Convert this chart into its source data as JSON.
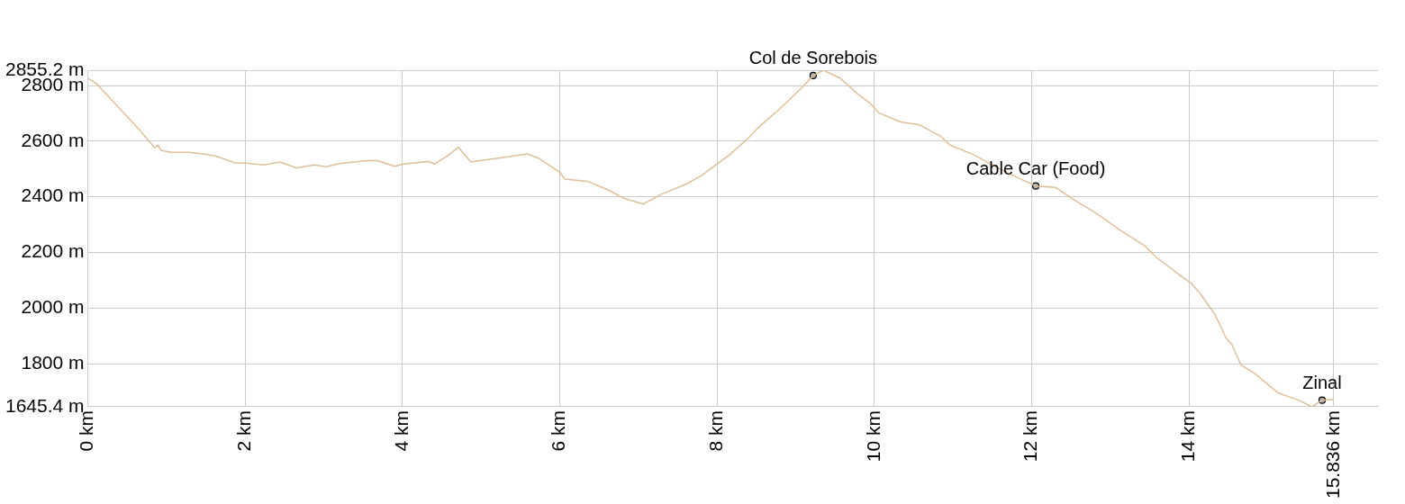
{
  "chart_data": {
    "type": "line",
    "series": [
      {
        "color": "#dfbf99",
        "x": [
          0,
          0.11,
          0.34,
          0.66,
          0.85,
          0.89,
          0.93,
          1.05,
          1.28,
          1.47,
          1.63,
          1.87,
          2.01,
          2.24,
          2.44,
          2.65,
          2.88,
          3.02,
          3.23,
          3.55,
          3.68,
          3.9,
          4.01,
          4.33,
          4.41,
          4.56,
          4.71,
          4.87,
          5.07,
          5.34,
          5.59,
          5.73,
          5.85,
          6,
          6.06,
          6.35,
          6.62,
          6.82,
          7.06,
          7.29,
          7.6,
          7.8,
          8,
          8.15,
          8.38,
          8.54,
          8.78,
          9.08,
          9.22,
          9.35,
          9.56,
          9.79,
          9.94,
          10.06,
          10.33,
          10.57,
          10.84,
          10.96,
          11.24,
          11.69,
          12.05,
          12.3,
          12.56,
          12.79,
          13.13,
          13.43,
          13.58,
          13.88,
          14.03,
          14.14,
          14.33,
          14.47,
          14.54,
          14.66,
          14.82,
          15.13,
          15.39,
          15.56,
          15.69,
          15.836
        ],
        "values": [
          2826,
          2807,
          2737,
          2639,
          2576,
          2586,
          2567,
          2560,
          2560,
          2554,
          2546,
          2522,
          2521,
          2515,
          2525,
          2504,
          2515,
          2508,
          2521,
          2530,
          2530,
          2510,
          2518,
          2527,
          2518,
          2545,
          2578,
          2525,
          2533,
          2544,
          2554,
          2539,
          2516,
          2488,
          2464,
          2456,
          2424,
          2394,
          2374,
          2409,
          2445,
          2476,
          2518,
          2549,
          2607,
          2654,
          2712,
          2794,
          2836,
          2855,
          2827,
          2769,
          2737,
          2701,
          2669,
          2659,
          2618,
          2586,
          2554,
          2486,
          2439,
          2434,
          2385,
          2346,
          2279,
          2225,
          2183,
          2119,
          2088,
          2052,
          1976,
          1892,
          1870,
          1795,
          1768,
          1695,
          1669,
          1645.4,
          1669,
          1671
        ]
      },
      {
        "type": "scatter",
        "color": "#aaaaaa",
        "marker": "circle",
        "x": [
          9.22,
          12.05,
          15.69
        ],
        "values": [
          2836,
          2439,
          1669
        ]
      }
    ],
    "xlim": [
      0,
      16.4
    ],
    "xticks": [
      {
        "value": 0,
        "label": "0 km"
      },
      {
        "value": 2,
        "label": "2 km"
      },
      {
        "value": 4,
        "label": "4 km"
      },
      {
        "value": 6,
        "label": "6 km"
      },
      {
        "value": 8,
        "label": "8 km"
      },
      {
        "value": 10,
        "label": "10 km"
      },
      {
        "value": 12,
        "label": "12 km"
      },
      {
        "value": 14,
        "label": "14 km"
      },
      {
        "value": 15.836,
        "label": "15.836 km"
      }
    ],
    "ylim": [
      1645.4,
      2855.2
    ],
    "yticks": [
      {
        "value": 1645.4,
        "label": "1645.4 m"
      },
      {
        "value": 1800,
        "label": "1800 m"
      },
      {
        "value": 2000,
        "label": "2000 m"
      },
      {
        "value": 2200,
        "label": "2200 m"
      },
      {
        "value": 2400,
        "label": "2400 m"
      },
      {
        "value": 2600,
        "label": "2600 m"
      },
      {
        "value": 2800,
        "label": "2800 m"
      },
      {
        "value": 2855.2,
        "label": "2855.2 m"
      }
    ],
    "annotations": [
      {
        "text": "Col de Sorebois",
        "x": 9.22,
        "y": 2836
      },
      {
        "text": "Cable Car (Food)",
        "x": 12.05,
        "y": 2439
      },
      {
        "text": "Zinal",
        "x": 15.69,
        "y": 1669
      }
    ],
    "grid": true,
    "marker": "none",
    "line_style": "solid"
  }
}
